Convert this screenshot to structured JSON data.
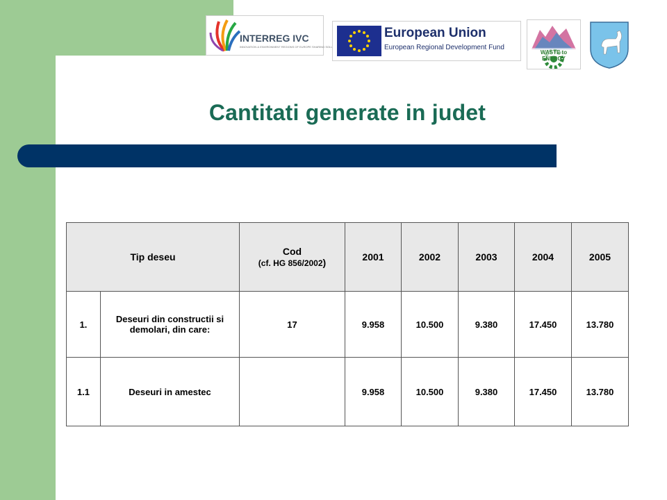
{
  "logos": {
    "interreg": {
      "name": "INTERREG IVC",
      "subtitle": "INNOVATION & ENVIRONMENT REGIONS OF EUROPE SHARING SOLUTIONS"
    },
    "eu": {
      "title": "European Union",
      "subtitle": "European Regional Development Fund"
    },
    "waste": {
      "text": "WASTE to ENERGY"
    },
    "crest": {
      "icon": "county-crest-deer"
    }
  },
  "slide": {
    "title": "Cantitati generate in judet"
  },
  "table": {
    "header": {
      "tip": "Tip deseu",
      "cod": "Cod",
      "cod_note_a": "(cf. HG 856/2002",
      "cod_note_b": ")",
      "years": [
        "2001",
        "2002",
        "2003",
        "2004",
        "2005"
      ]
    },
    "rows": [
      {
        "nr": "1.",
        "tip": "Deseuri din constructii si demolari, din care:",
        "cod": "17",
        "values": [
          "9.958",
          "10.500",
          "9.380",
          "17.450",
          "13.780"
        ]
      },
      {
        "nr": "1.1",
        "tip": "Deseuri in amestec",
        "cod": "",
        "values": [
          "9.958",
          "10.500",
          "9.380",
          "17.450",
          "13.780"
        ]
      }
    ]
  },
  "colors": {
    "green": "#9dcb94",
    "title": "#1a6b55",
    "bar": "#003366",
    "header_bg": "#e8e8e8"
  }
}
